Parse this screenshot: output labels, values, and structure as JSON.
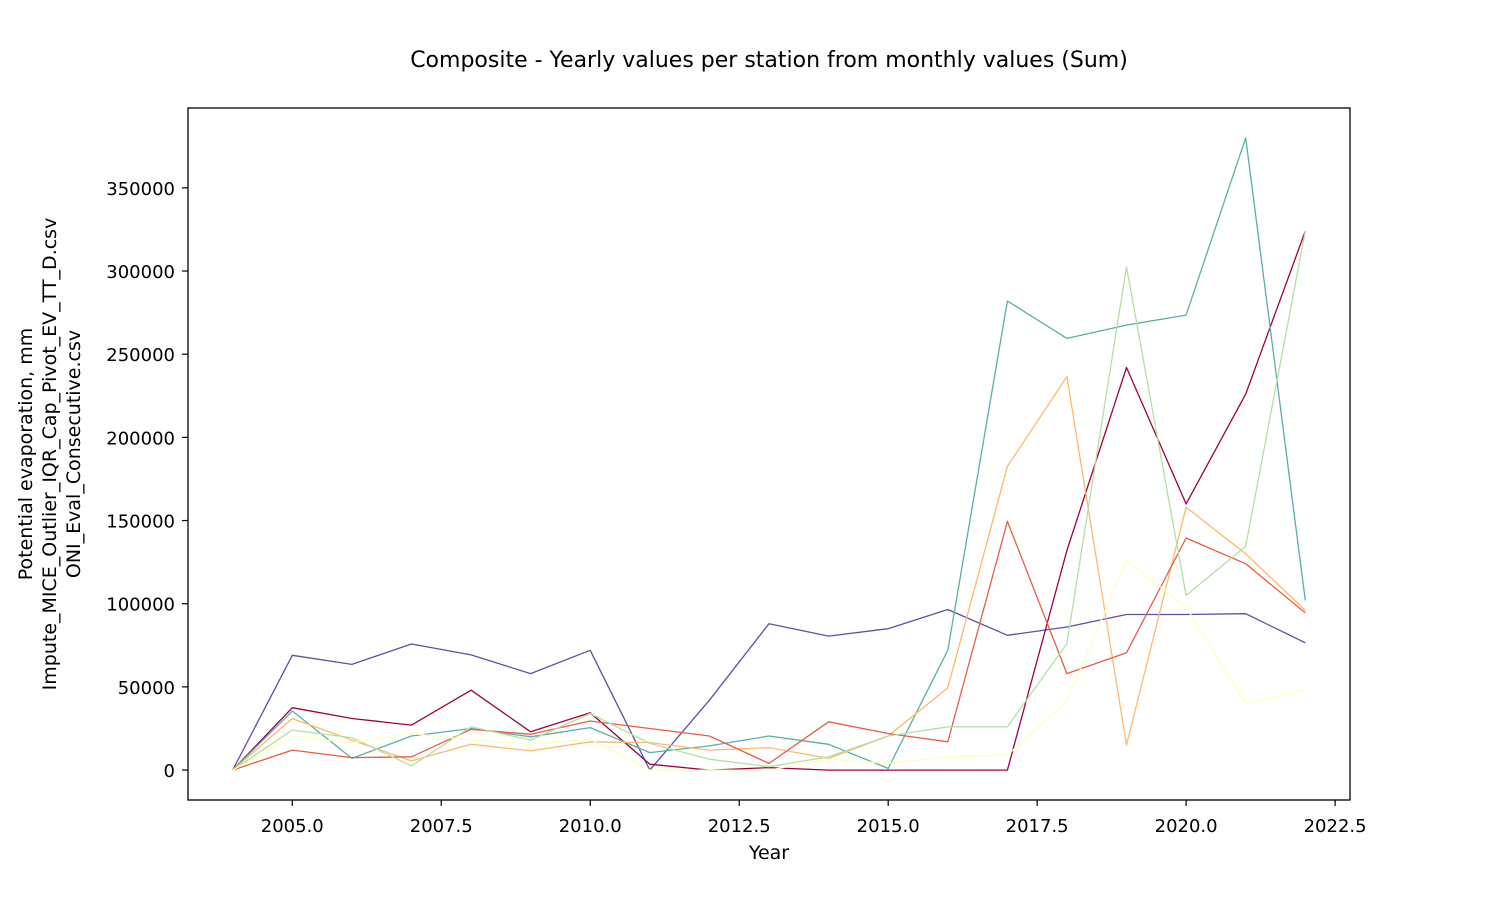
{
  "chart_data": {
    "type": "line",
    "title": "Composite - Yearly values per station from monthly values (Sum)",
    "xlabel": "Year",
    "ylabel": [
      "Potential evaporation, mm",
      "Impute_MICE_Outlier_IQR_Cap_Pivot_EV_TT_D.csv",
      "ONI_Eval_Consecutive.csv"
    ],
    "xlim": [
      2003.25,
      2022.75
    ],
    "ylim": [
      -18000,
      398000
    ],
    "xticks": [
      2005.0,
      2007.5,
      2010.0,
      2012.5,
      2015.0,
      2017.5,
      2020.0,
      2022.5
    ],
    "xtick_labels": [
      "2005.0",
      "2007.5",
      "2010.0",
      "2012.5",
      "2015.0",
      "2017.5",
      "2020.0",
      "2022.5"
    ],
    "yticks": [
      0,
      50000,
      100000,
      150000,
      200000,
      250000,
      300000,
      350000
    ],
    "ytick_labels": [
      "0",
      "50000",
      "100000",
      "150000",
      "200000",
      "250000",
      "300000",
      "350000"
    ],
    "grid": false,
    "legend": "none",
    "x": [
      2004,
      2005,
      2006,
      2007,
      2008,
      2009,
      2010,
      2011,
      2012,
      2013,
      2014,
      2015,
      2016,
      2017,
      2018,
      2019,
      2020,
      2021,
      2022
    ],
    "series": [
      {
        "color": "#5e4fa2",
        "values": [
          0,
          69000,
          63500,
          75800,
          69200,
          58000,
          72000,
          0,
          42000,
          88000,
          80500,
          85000,
          96500,
          81000,
          86000,
          93500,
          93500,
          94000,
          76500
        ]
      },
      {
        "color": "#9e0142",
        "values": [
          0,
          37500,
          31000,
          27000,
          48000,
          23000,
          34500,
          3500,
          0,
          1500,
          0,
          0,
          0,
          0,
          132000,
          242000,
          160000,
          226000,
          324000
        ]
      },
      {
        "color": "#5aaeaa",
        "values": [
          0,
          35500,
          7000,
          20500,
          25000,
          20000,
          25500,
          10500,
          14500,
          20500,
          15500,
          1000,
          72000,
          282000,
          259500,
          267500,
          273500,
          380000,
          102000
        ]
      },
      {
        "color": "#fdb96a",
        "values": [
          0,
          31000,
          18000,
          5500,
          15500,
          11500,
          17000,
          16500,
          12000,
          13500,
          7000,
          20500,
          49500,
          182500,
          236500,
          15000,
          158000,
          130000,
          96000
        ]
      },
      {
        "color": "#e95c47",
        "values": [
          0,
          12000,
          7500,
          8000,
          24500,
          21500,
          29500,
          25000,
          20500,
          4000,
          29000,
          22000,
          17000,
          149500,
          58000,
          70500,
          139500,
          124000,
          94500
        ]
      },
      {
        "color": "#b3e0a6",
        "values": [
          0,
          24000,
          19500,
          2500,
          26000,
          18000,
          34000,
          16000,
          6500,
          2000,
          8000,
          20500,
          26000,
          26000,
          76000,
          302500,
          105000,
          134500,
          324000
        ]
      },
      {
        "color": "#ffffbf",
        "values": [
          0,
          20000,
          16500,
          22000,
          18000,
          15500,
          18500,
          0,
          0,
          0,
          6500,
          4000,
          8000,
          9000,
          41500,
          126000,
          98000,
          40000,
          48500
        ]
      }
    ]
  }
}
